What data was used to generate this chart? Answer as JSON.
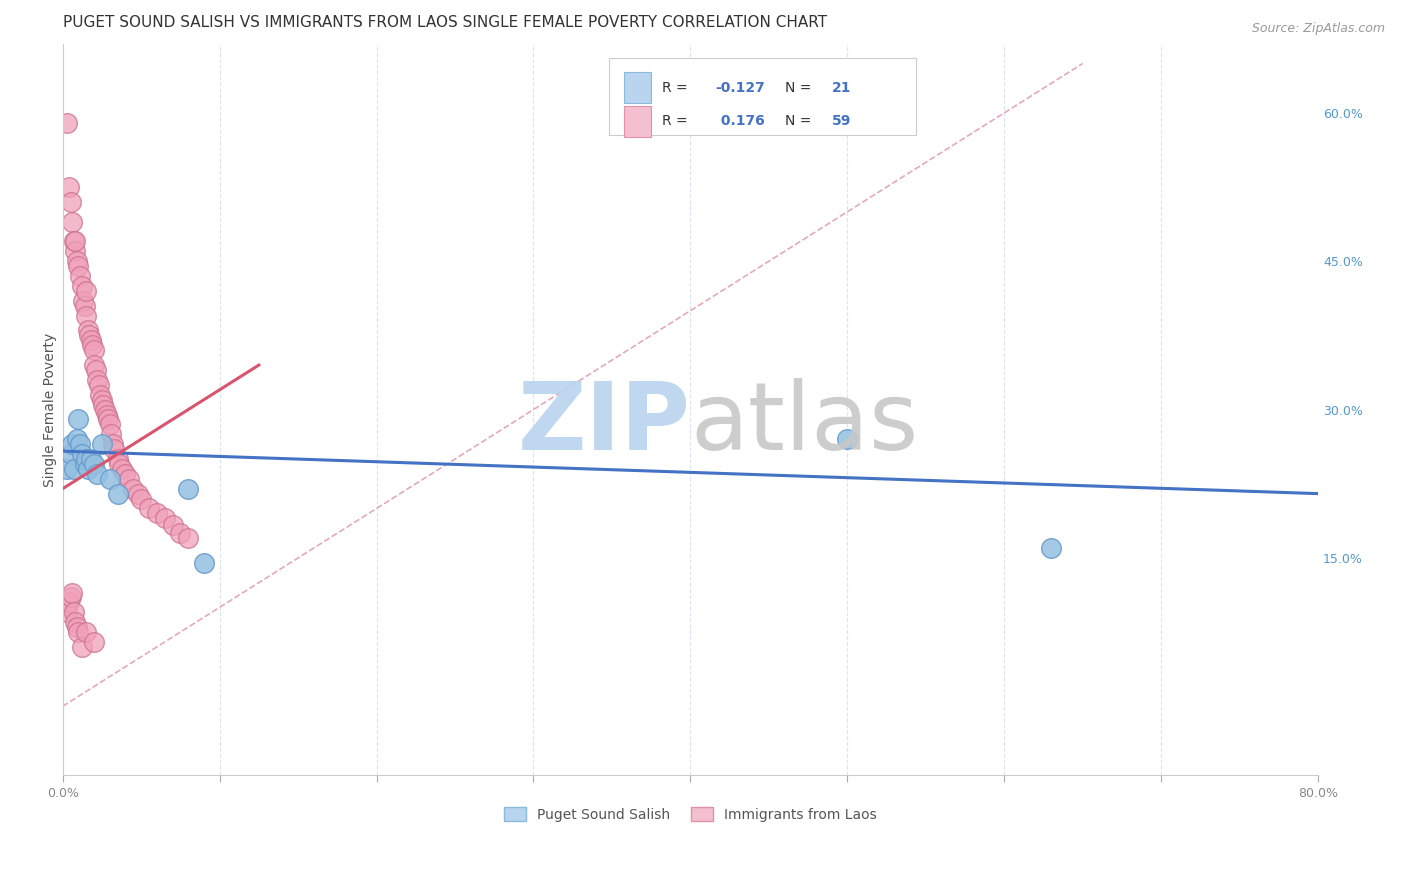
{
  "title": "PUGET SOUND SALISH VS IMMIGRANTS FROM LAOS SINGLE FEMALE POVERTY CORRELATION CHART",
  "source": "Source: ZipAtlas.com",
  "ylabel": "Single Female Poverty",
  "xlim": [
    0.0,
    0.8
  ],
  "ylim": [
    -0.07,
    0.67
  ],
  "yticks_right": [
    0.15,
    0.3,
    0.45,
    0.6
  ],
  "ytick_labels_right": [
    "15.0%",
    "30.0%",
    "45.0%",
    "60.0%"
  ],
  "xticks": [
    0.0,
    0.1,
    0.2,
    0.3,
    0.4,
    0.5,
    0.6,
    0.7,
    0.8
  ],
  "xtick_labels": [
    "0.0%",
    "",
    "",
    "",
    "",
    "",
    "",
    "",
    "80.0%"
  ],
  "blue_series": {
    "name": "Puget Sound Salish",
    "color": "#93c0e0",
    "edge_color": "#6699cc",
    "x": [
      0.003,
      0.005,
      0.006,
      0.007,
      0.009,
      0.01,
      0.011,
      0.012,
      0.014,
      0.015,
      0.016,
      0.018,
      0.02,
      0.022,
      0.025,
      0.03,
      0.035,
      0.08,
      0.09,
      0.5,
      0.63
    ],
    "y": [
      0.24,
      0.255,
      0.265,
      0.24,
      0.27,
      0.29,
      0.265,
      0.255,
      0.245,
      0.25,
      0.24,
      0.25,
      0.245,
      0.235,
      0.265,
      0.23,
      0.215,
      0.22,
      0.145,
      0.27,
      0.16
    ]
  },
  "pink_series": {
    "name": "Immigrants from Laos",
    "color": "#f0a0b8",
    "edge_color": "#cc7090",
    "x": [
      0.003,
      0.004,
      0.005,
      0.006,
      0.007,
      0.008,
      0.008,
      0.009,
      0.01,
      0.011,
      0.012,
      0.013,
      0.014,
      0.015,
      0.015,
      0.016,
      0.017,
      0.018,
      0.019,
      0.02,
      0.02,
      0.021,
      0.022,
      0.023,
      0.024,
      0.025,
      0.026,
      0.027,
      0.028,
      0.029,
      0.03,
      0.031,
      0.032,
      0.033,
      0.035,
      0.036,
      0.038,
      0.04,
      0.042,
      0.045,
      0.048,
      0.05,
      0.055,
      0.06,
      0.065,
      0.07,
      0.075,
      0.08,
      0.003,
      0.004,
      0.005,
      0.006,
      0.007,
      0.008,
      0.009,
      0.01,
      0.012,
      0.015,
      0.02
    ],
    "y": [
      0.59,
      0.525,
      0.51,
      0.49,
      0.47,
      0.46,
      0.47,
      0.45,
      0.445,
      0.435,
      0.425,
      0.41,
      0.405,
      0.395,
      0.42,
      0.38,
      0.375,
      0.37,
      0.365,
      0.36,
      0.345,
      0.34,
      0.33,
      0.325,
      0.315,
      0.31,
      0.305,
      0.3,
      0.295,
      0.29,
      0.285,
      0.275,
      0.265,
      0.26,
      0.25,
      0.245,
      0.24,
      0.235,
      0.23,
      0.22,
      0.215,
      0.21,
      0.2,
      0.195,
      0.19,
      0.183,
      0.175,
      0.17,
      0.095,
      0.105,
      0.11,
      0.115,
      0.095,
      0.085,
      0.08,
      0.075,
      0.06,
      0.075,
      0.065
    ]
  },
  "blue_line": {
    "x0": 0.0,
    "y0": 0.258,
    "x1": 0.8,
    "y1": 0.215
  },
  "pink_line": {
    "x0": 0.0,
    "y0": 0.22,
    "x1": 0.125,
    "y1": 0.345
  },
  "dash_line": {
    "x0": 0.0,
    "y0": 0.0,
    "x1": 0.65,
    "y1": 0.65
  },
  "watermark": "ZIPatlas",
  "watermark_color": "#cce0f5",
  "grid_color": "#d8e4f0",
  "background_color": "#ffffff",
  "title_fontsize": 11,
  "axis_label_fontsize": 10,
  "tick_fontsize": 9
}
